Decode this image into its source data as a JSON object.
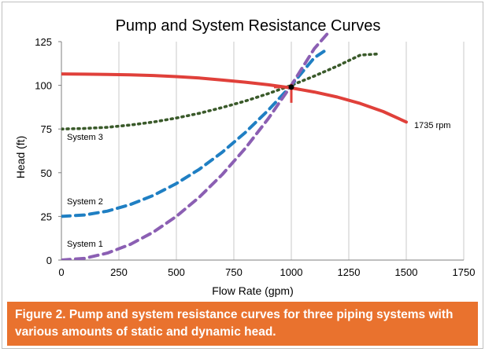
{
  "chart_data": {
    "type": "line",
    "title": "Pump and System Resistance Curves",
    "xlabel": "Flow Rate (gpm)",
    "ylabel": "Head (ft)",
    "xlim": [
      0,
      1750
    ],
    "ylim": [
      0,
      125
    ],
    "xticks": [
      0,
      250,
      500,
      750,
      1000,
      1250,
      1500,
      1750
    ],
    "yticks": [
      0,
      25,
      50,
      75,
      100,
      125
    ],
    "grid": "vertical",
    "series": [
      {
        "name": "1735 rpm",
        "color": "#e0403a",
        "style": "solid",
        "x": [
          0,
          100,
          200,
          300,
          400,
          500,
          600,
          700,
          800,
          900,
          1000,
          1100,
          1200,
          1300,
          1400,
          1500
        ],
        "y": [
          106.5,
          106.4,
          106.2,
          106.0,
          105.6,
          105.0,
          104.2,
          103.0,
          101.8,
          100.3,
          98.5,
          96.2,
          93.3,
          89.6,
          85.0,
          79.0
        ]
      },
      {
        "name": "System 1",
        "color": "#8b5fb3",
        "style": "dashed",
        "x": [
          0,
          100,
          200,
          300,
          400,
          500,
          600,
          700,
          800,
          900,
          1000,
          1100,
          1160
        ],
        "y": [
          0,
          1.0,
          4.0,
          9.0,
          16.0,
          25.0,
          36.0,
          49.0,
          64.0,
          81.0,
          100.0,
          121.0,
          130.0
        ]
      },
      {
        "name": "System 2",
        "color": "#1f7fc3",
        "style": "dashed",
        "x": [
          0,
          100,
          200,
          300,
          400,
          500,
          600,
          700,
          800,
          900,
          1000,
          1100,
          1160
        ],
        "y": [
          25.0,
          25.8,
          28.0,
          31.8,
          37.0,
          43.8,
          52.0,
          61.8,
          73.0,
          85.8,
          100.0,
          115.8,
          121.0
        ]
      },
      {
        "name": "System 3",
        "color": "#3a5a2a",
        "style": "dotted",
        "x": [
          0,
          100,
          200,
          300,
          400,
          500,
          600,
          700,
          800,
          900,
          1000,
          1100,
          1200,
          1300,
          1380
        ],
        "y": [
          75.0,
          75.3,
          76.0,
          77.3,
          79.0,
          81.3,
          84.0,
          87.3,
          91.0,
          95.3,
          100.0,
          105.3,
          111.0,
          117.3,
          118.0
        ]
      }
    ],
    "operating_point": {
      "x": 1000,
      "y": 99
    },
    "annotations": [
      "System 3",
      "System 2",
      "System 1",
      "1735 rpm"
    ]
  },
  "caption": "Figure 2. Pump and system resistance curves for three piping systems with various amounts of static and dynamic head."
}
